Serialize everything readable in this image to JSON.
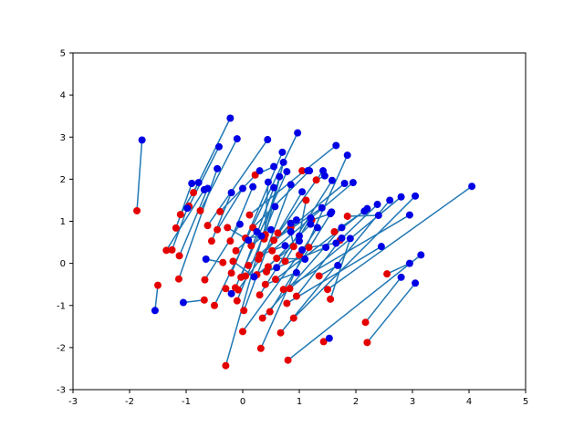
{
  "chart_data": {
    "type": "scatter",
    "title": "",
    "xlabel": "",
    "ylabel": "",
    "xlim": [
      -3,
      5
    ],
    "ylim": [
      -3,
      5
    ],
    "x_ticks": [
      "-3",
      "-2",
      "-1",
      "0",
      "1",
      "2",
      "3",
      "4",
      "5"
    ],
    "y_ticks": [
      "-3",
      "-2",
      "-1",
      "0",
      "1",
      "2",
      "3",
      "4",
      "5"
    ],
    "grid": false,
    "legend": "none",
    "colors": {
      "line": "#1f77b4",
      "start": "#e50000",
      "end": "#0000e5"
    },
    "series": [
      {
        "role": "start-points",
        "color": "#e50000"
      },
      {
        "role": "end-points",
        "color": "#0000e5"
      }
    ],
    "pairs": [
      {
        "start": [
          -1.87,
          1.25
        ],
        "end": [
          -1.78,
          2.93
        ]
      },
      {
        "start": [
          -1.5,
          -0.52
        ],
        "end": [
          -1.55,
          -1.12
        ]
      },
      {
        "start": [
          -1.35,
          0.31
        ],
        "end": [
          -0.68,
          1.75
        ]
      },
      {
        "start": [
          -1.25,
          0.32
        ],
        "end": [
          -0.98,
          1.31
        ]
      },
      {
        "start": [
          -1.18,
          0.84
        ],
        "end": [
          -0.9,
          1.9
        ]
      },
      {
        "start": [
          -1.13,
          -0.37
        ],
        "end": [
          -0.45,
          2.25
        ]
      },
      {
        "start": [
          -1.12,
          0.18
        ],
        "end": [
          -0.62,
          1.78
        ]
      },
      {
        "start": [
          -1.1,
          1.16
        ],
        "end": [
          -0.78,
          1.92
        ]
      },
      {
        "start": [
          -0.95,
          1.36
        ],
        "end": [
          -0.42,
          2.77
        ]
      },
      {
        "start": [
          -0.87,
          1.68
        ],
        "end": [
          -0.22,
          3.45
        ]
      },
      {
        "start": [
          -0.75,
          1.25
        ],
        "end": [
          -0.1,
          2.96
        ]
      },
      {
        "start": [
          -0.68,
          -0.87
        ],
        "end": [
          -1.05,
          -0.93
        ]
      },
      {
        "start": [
          -0.67,
          -0.39
        ],
        "end": [
          -0.05,
          0.93
        ]
      },
      {
        "start": [
          -0.62,
          0.9
        ],
        "end": [
          0.44,
          2.94
        ]
      },
      {
        "start": [
          -0.55,
          0.53
        ],
        "end": [
          -0.2,
          1.68
        ]
      },
      {
        "start": [
          -0.5,
          -1.0
        ],
        "end": [
          0.97,
          3.1
        ]
      },
      {
        "start": [
          -0.45,
          0.8
        ],
        "end": [
          0.0,
          1.78
        ]
      },
      {
        "start": [
          -0.4,
          1.23
        ],
        "end": [
          0.3,
          2.2
        ]
      },
      {
        "start": [
          -0.35,
          0.02
        ],
        "end": [
          -0.65,
          0.1
        ]
      },
      {
        "start": [
          -0.3,
          -2.43
        ],
        "end": [
          0.65,
          2.06
        ]
      },
      {
        "start": [
          -0.27,
          0.85
        ],
        "end": [
          0.1,
          0.55
        ]
      },
      {
        "start": [
          -0.22,
          0.53
        ],
        "end": [
          0.18,
          1.82
        ]
      },
      {
        "start": [
          -0.2,
          -0.23
        ],
        "end": [
          0.7,
          2.64
        ]
      },
      {
        "start": [
          -0.17,
          0.05
        ],
        "end": [
          0.2,
          -0.32
        ]
      },
      {
        "start": [
          -0.13,
          -0.58
        ],
        "end": [
          0.78,
          2.18
        ]
      },
      {
        "start": [
          -0.1,
          -0.89
        ],
        "end": [
          0.57,
          1.35
        ]
      },
      {
        "start": [
          -0.08,
          -0.63
        ],
        "end": [
          1.42,
          2.2
        ]
      },
      {
        "start": [
          -0.03,
          -0.33
        ],
        "end": [
          0.55,
          1.8
        ]
      },
      {
        "start": [
          0.0,
          -1.62
        ],
        "end": [
          1.05,
          0.32
        ]
      },
      {
        "start": [
          0.02,
          -1.12
        ],
        "end": [
          0.85,
          1.87
        ]
      },
      {
        "start": [
          0.05,
          0.6
        ],
        "end": [
          0.33,
          0.65
        ]
      },
      {
        "start": [
          0.1,
          -0.05
        ],
        "end": [
          0.95,
          1.03
        ]
      },
      {
        "start": [
          0.12,
          1.15
        ],
        "end": [
          1.65,
          2.8
        ]
      },
      {
        "start": [
          0.18,
          0.85
        ],
        "end": [
          1.18,
          2.2
        ]
      },
      {
        "start": [
          0.22,
          2.1
        ],
        "end": [
          0.55,
          2.3
        ]
      },
      {
        "start": [
          0.25,
          -0.27
        ],
        "end": [
          1.0,
          0.53
        ]
      },
      {
        "start": [
          0.28,
          0.1
        ],
        "end": [
          0.85,
          0.95
        ]
      },
      {
        "start": [
          0.3,
          -0.75
        ],
        "end": [
          1.58,
          1.97
        ]
      },
      {
        "start": [
          0.32,
          -2.02
        ],
        "end": [
          1.85,
          2.57
        ]
      },
      {
        "start": [
          0.35,
          -1.3
        ],
        "end": [
          1.75,
          0.85
        ]
      },
      {
        "start": [
          0.38,
          0.58
        ],
        "end": [
          0.45,
          1.93
        ]
      },
      {
        "start": [
          0.4,
          0.68
        ],
        "end": [
          0.72,
          2.4
        ]
      },
      {
        "start": [
          0.42,
          -0.2
        ],
        "end": [
          1.47,
          0.38
        ]
      },
      {
        "start": [
          0.45,
          -0.08
        ],
        "end": [
          1.2,
          0.93
        ]
      },
      {
        "start": [
          0.48,
          -1.15
        ],
        "end": [
          1.57,
          1.22
        ]
      },
      {
        "start": [
          0.52,
          0.3
        ],
        "end": [
          1.95,
          1.92
        ]
      },
      {
        "start": [
          0.55,
          0.55
        ],
        "end": [
          1.4,
          1.32
        ]
      },
      {
        "start": [
          0.58,
          -0.38
        ],
        "end": [
          2.2,
          1.3
        ]
      },
      {
        "start": [
          0.62,
          0.72
        ],
        "end": [
          1.05,
          1.7
        ]
      },
      {
        "start": [
          0.67,
          -1.65
        ],
        "end": [
          2.6,
          1.5
        ]
      },
      {
        "start": [
          0.72,
          -0.62
        ],
        "end": [
          2.95,
          1.15
        ]
      },
      {
        "start": [
          0.75,
          0.05
        ],
        "end": [
          1.2,
          1.08
        ]
      },
      {
        "start": [
          0.78,
          -0.95
        ],
        "end": [
          2.45,
          0.4
        ]
      },
      {
        "start": [
          0.8,
          -2.3
        ],
        "end": [
          3.15,
          0.2
        ]
      },
      {
        "start": [
          0.83,
          -0.6
        ],
        "end": [
          2.8,
          1.58
        ]
      },
      {
        "start": [
          0.85,
          0.85
        ],
        "end": [
          1.8,
          1.9
        ]
      },
      {
        "start": [
          0.9,
          -1.3
        ],
        "end": [
          3.05,
          1.6
        ]
      },
      {
        "start": [
          0.95,
          -0.78
        ],
        "end": [
          1.75,
          0.6
        ]
      },
      {
        "start": [
          1.0,
          0.2
        ],
        "end": [
          1.32,
          0.85
        ]
      },
      {
        "start": [
          1.05,
          2.2
        ],
        "end": [
          1.15,
          2.2
        ]
      },
      {
        "start": [
          1.12,
          1.5
        ],
        "end": [
          1.0,
          0.65
        ]
      },
      {
        "start": [
          1.17,
          0.38
        ],
        "end": [
          1.65,
          0.48
        ]
      },
      {
        "start": [
          1.22,
          1.03
        ],
        "end": [
          1.55,
          1.18
        ]
      },
      {
        "start": [
          1.3,
          1.98
        ],
        "end": [
          1.45,
          2.08
        ]
      },
      {
        "start": [
          1.35,
          -0.3
        ],
        "end": [
          1.68,
          -0.05
        ]
      },
      {
        "start": [
          1.43,
          -1.86
        ],
        "end": [
          1.53,
          -1.78
        ]
      },
      {
        "start": [
          1.5,
          -0.62
        ],
        "end": [
          4.05,
          1.83
        ]
      },
      {
        "start": [
          1.55,
          -0.85
        ],
        "end": [
          1.9,
          0.59
        ]
      },
      {
        "start": [
          1.62,
          0.75
        ],
        "end": [
          2.15,
          1.24
        ]
      },
      {
        "start": [
          1.72,
          0.55
        ],
        "end": [
          2.38,
          1.4
        ]
      },
      {
        "start": [
          1.85,
          1.12
        ],
        "end": [
          2.4,
          1.14
        ]
      },
      {
        "start": [
          2.17,
          -1.4
        ],
        "end": [
          2.8,
          -0.33
        ]
      },
      {
        "start": [
          2.2,
          -1.88
        ],
        "end": [
          3.05,
          -0.47
        ]
      },
      {
        "start": [
          2.55,
          -0.25
        ],
        "end": [
          2.95,
          0.0
        ]
      },
      {
        "start": [
          0.05,
          -0.3
        ],
        "end": [
          0.6,
          -0.1
        ]
      },
      {
        "start": [
          0.3,
          0.2
        ],
        "end": [
          0.75,
          0.42
        ]
      },
      {
        "start": [
          -0.12,
          0.3
        ],
        "end": [
          0.25,
          0.75
        ]
      },
      {
        "start": [
          0.6,
          0.12
        ],
        "end": [
          1.1,
          0.1
        ]
      },
      {
        "start": [
          0.15,
          0.42
        ],
        "end": [
          0.5,
          0.8
        ]
      },
      {
        "start": [
          -0.3,
          -0.6
        ],
        "end": [
          -0.2,
          -0.72
        ]
      },
      {
        "start": [
          0.9,
          0.4
        ],
        "end": [
          0.85,
          0.75
        ]
      },
      {
        "start": [
          0.4,
          -0.5
        ],
        "end": [
          0.95,
          -0.22
        ]
      }
    ]
  }
}
